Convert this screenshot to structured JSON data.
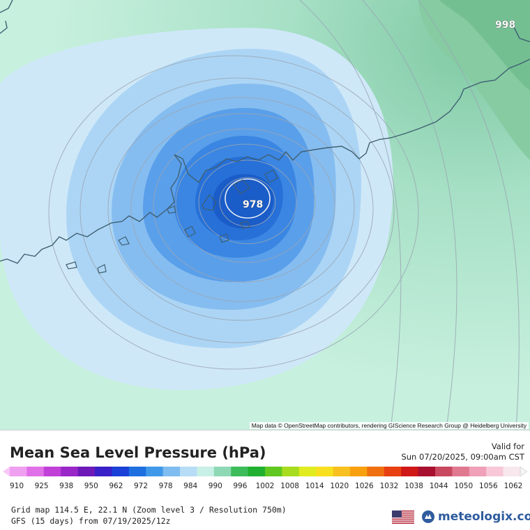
{
  "map": {
    "attribution": "Map data © OpenStreetMap contributors, rendering GIScience Research Group @ Heidelberg University",
    "pressure_labels": [
      {
        "id": "center-low",
        "text": "978"
      },
      {
        "id": "corner-ne",
        "text": "998"
      }
    ],
    "center": {
      "lon": 114.5,
      "lat": 22.1
    }
  },
  "legend": {
    "title": "Mean Sea Level Pressure (hPa)",
    "valid_label": "Valid for",
    "valid_time": "Sun 07/20/2025, 09:00am CST",
    "ticks": [
      "910",
      "925",
      "938",
      "950",
      "962",
      "972",
      "978",
      "984",
      "990",
      "996",
      "1002",
      "1008",
      "1014",
      "1020",
      "1026",
      "1032",
      "1038",
      "1044",
      "1050",
      "1056",
      "1062"
    ],
    "colors": [
      "#f0a0f0",
      "#e070e8",
      "#c040d8",
      "#9a28c8",
      "#6d1ab8",
      "#3a20c8",
      "#1a40d8",
      "#1e70e0",
      "#3f98e8",
      "#7fbcf0",
      "#b7dcf6",
      "#c8f0e6",
      "#8ed8b6",
      "#3cbc5a",
      "#20b030",
      "#60c820",
      "#a8dc20",
      "#e0ec20",
      "#f8e020",
      "#f8c020",
      "#f8a010",
      "#f07010",
      "#e84010",
      "#d01818",
      "#a81030",
      "#c84860",
      "#e07890",
      "#f0a0b8",
      "#f8c8d8",
      "#f8e8ee"
    ],
    "scale_start_color": "#f8c8f8",
    "scale_end_color": "#f4f4f4"
  },
  "footer": {
    "grid_line": "Grid map 114.5 E, 22.1 N (Zoom level 3 / Resolution 750m)",
    "model_line": "GFS (15 days) from 07/19/2025/12z",
    "logo_text": "meteologix.com"
  },
  "icons": {
    "flag": "us-flag-icon",
    "logo": "meteologix-logo-icon"
  }
}
